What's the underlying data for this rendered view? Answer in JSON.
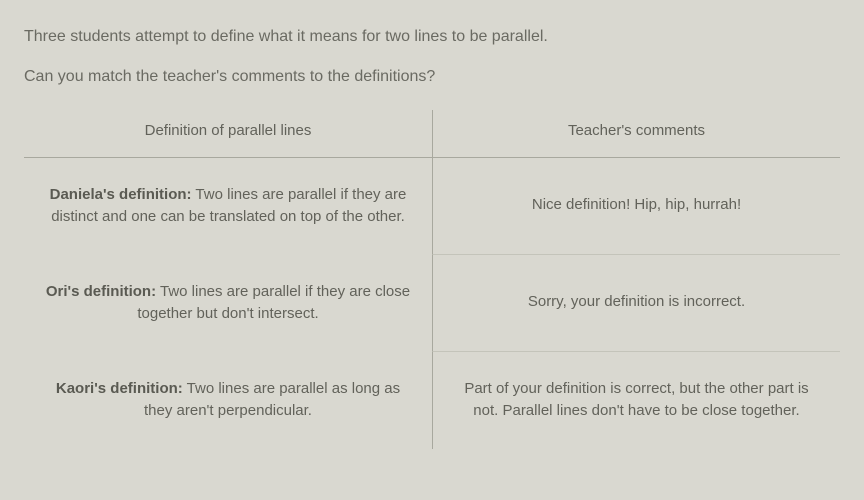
{
  "intro": "Three students attempt to define what it means for two lines to be parallel.",
  "prompt": "Can you match the teacher's comments to the definitions?",
  "table": {
    "headers": {
      "left": "Definition of parallel lines",
      "right": "Teacher's comments"
    },
    "rows": [
      {
        "name": "Daniela's definition:",
        "text": " Two lines are parallel if they are distinct and one can be translated on top of the other.",
        "comment": "Nice definition! Hip, hip, hurrah!"
      },
      {
        "name": "Ori's definition:",
        "text": " Two lines are parallel if they are close together but don't intersect.",
        "comment": "Sorry, your definition is incorrect."
      },
      {
        "name": "Kaori's definition:",
        "text": " Two lines are parallel as long as they aren't perpendicular.",
        "comment": "Part of your definition is correct, but the other part is not. Parallel lines don't have to be close together."
      }
    ]
  },
  "style": {
    "background_color": "#d9d8d0",
    "text_color": "#5a5a54",
    "border_color": "#a8a89e",
    "row_divider_color": "#c4c4ba",
    "font_size_body": 16,
    "font_size_cell": 15
  }
}
